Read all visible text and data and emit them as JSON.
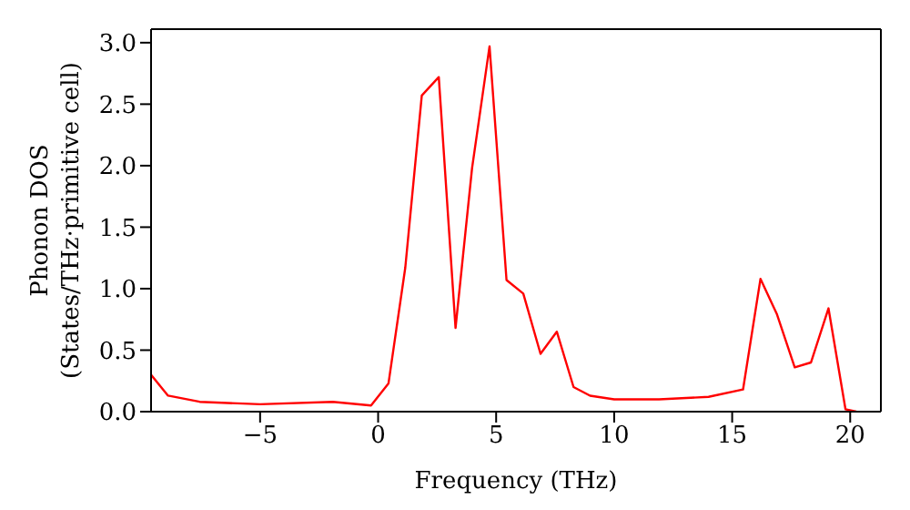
{
  "chart_data": {
    "type": "line",
    "xlabel": "Frequency (THz)",
    "ylabel": "Phonon DOS\n(States/THz·primitive cell)",
    "x": [
      -9.62,
      -8.9,
      -7.56,
      -5.0,
      -1.92,
      -0.3,
      0.44,
      1.15,
      1.85,
      2.57,
      3.28,
      3.98,
      4.72,
      5.44,
      6.15,
      6.88,
      7.57,
      8.28,
      8.98,
      10.0,
      11.9,
      14.0,
      15.46,
      16.2,
      16.9,
      17.65,
      18.34,
      19.08,
      19.8,
      20.26
    ],
    "series": [
      {
        "color": "#ff0000",
        "values": [
          0.3,
          0.13,
          0.08,
          0.06,
          0.08,
          0.05,
          0.23,
          1.17,
          2.57,
          2.72,
          0.68,
          1.98,
          2.97,
          1.07,
          0.96,
          0.47,
          0.65,
          0.2,
          0.13,
          0.1,
          0.1,
          0.12,
          0.18,
          1.08,
          0.79,
          0.36,
          0.4,
          0.84,
          0.02,
          0
        ]
      }
    ],
    "xlim": [
      -9.62,
      21.3
    ],
    "ylim": [
      0,
      3.11
    ],
    "xticks": [
      -5,
      0,
      5,
      10,
      15,
      20
    ],
    "yticks": [
      {
        "value": 0,
        "label": "0.0"
      },
      0.5,
      {
        "value": 1,
        "label": "1.0"
      },
      1.5,
      {
        "value": 2,
        "label": "2.0"
      },
      2.5,
      {
        "value": 3,
        "label": "3.0"
      }
    ],
    "grid": false,
    "legend": false,
    "marker": "none",
    "line_style": "solid"
  }
}
